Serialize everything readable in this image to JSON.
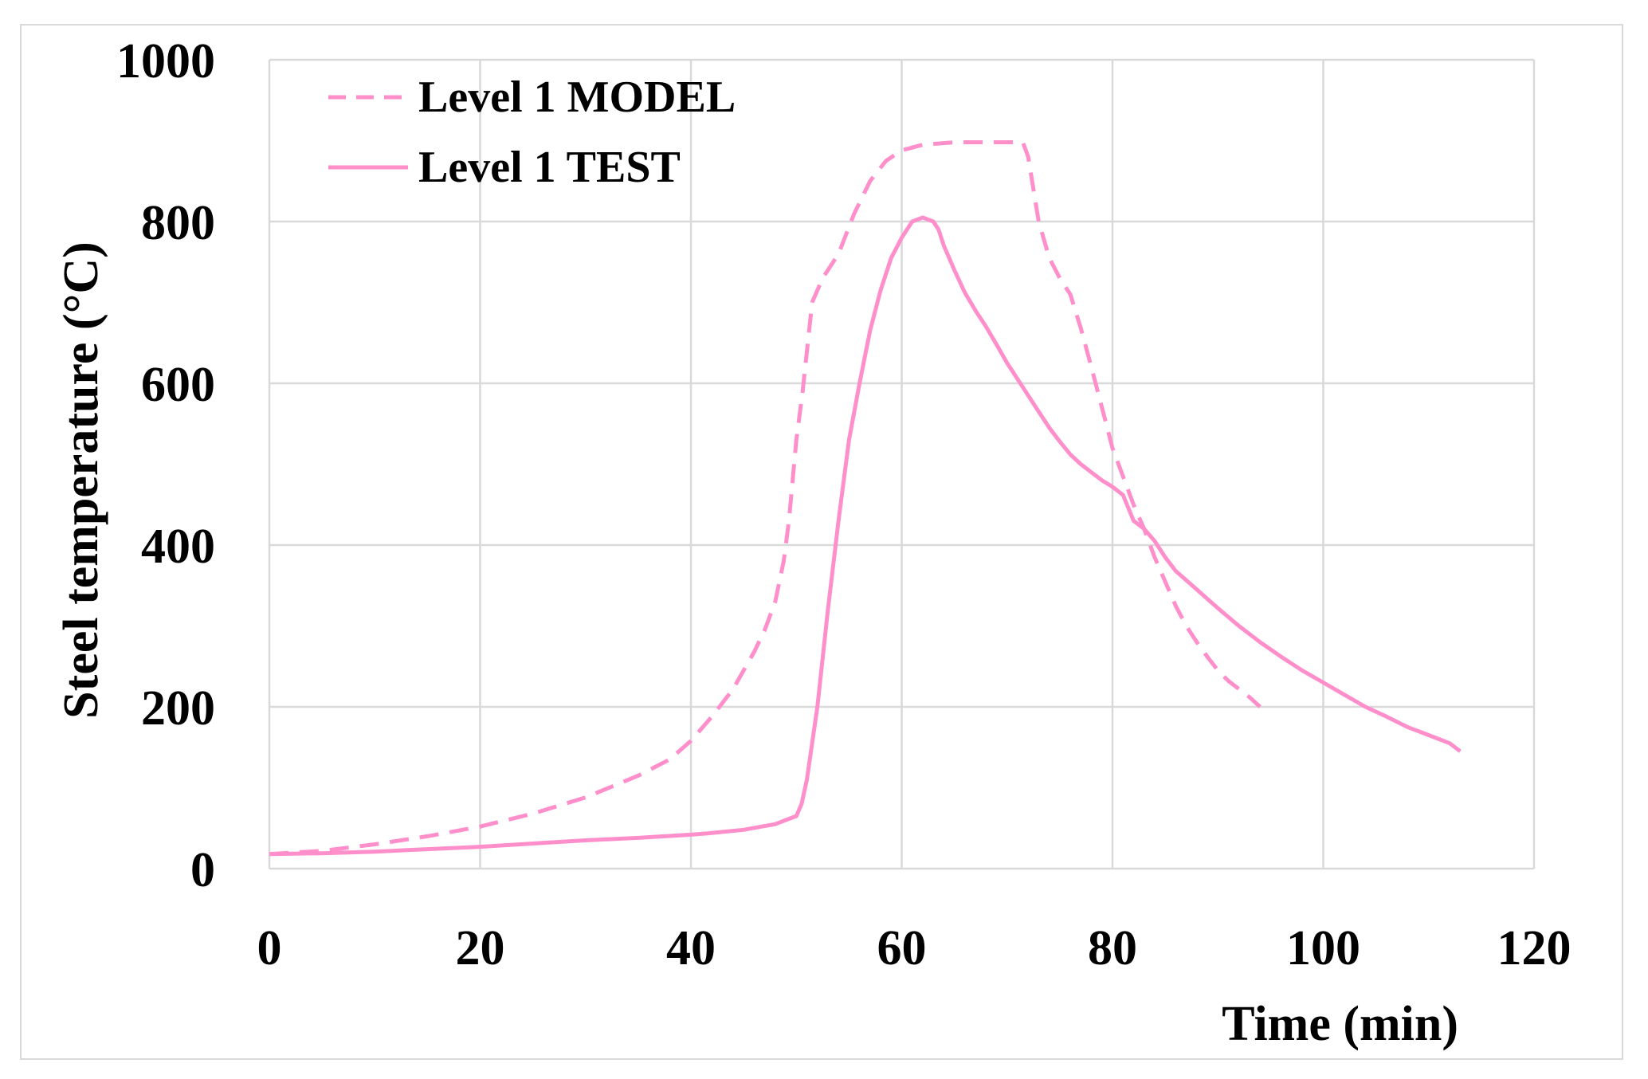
{
  "chart_data": {
    "type": "line",
    "title": "",
    "xlabel": "Time (min)",
    "ylabel": "Steel temperature (°C)",
    "xlim": [
      0,
      120
    ],
    "ylim": [
      0,
      1000
    ],
    "xticks": [
      0,
      20,
      40,
      60,
      80,
      100,
      120
    ],
    "yticks": [
      0,
      200,
      400,
      600,
      800,
      1000
    ],
    "grid": true,
    "legend_position": "top-left",
    "series": [
      {
        "name": "Level 1 MODEL",
        "style": "dashed",
        "color": "#ff8fcb",
        "x": [
          0,
          5,
          10,
          15,
          20,
          25,
          30,
          35,
          38,
          40,
          42,
          44,
          46,
          47,
          48,
          48.8,
          49.3,
          50,
          50.6,
          51.5,
          52.5,
          54,
          55.5,
          57,
          58.5,
          60,
          62,
          65,
          68,
          70,
          71.5,
          72,
          73,
          74,
          75,
          76,
          77,
          78,
          79,
          80,
          81,
          82,
          83,
          84,
          85,
          86,
          87,
          88,
          89,
          90,
          91,
          92,
          93,
          94
        ],
        "y": [
          18,
          22,
          30,
          40,
          52,
          68,
          88,
          115,
          135,
          158,
          188,
          222,
          268,
          295,
          330,
          380,
          430,
          530,
          590,
          700,
          730,
          760,
          810,
          850,
          875,
          888,
          895,
          898,
          898,
          898,
          898,
          880,
          800,
          755,
          730,
          710,
          668,
          620,
          570,
          520,
          485,
          450,
          420,
          385,
          355,
          325,
          300,
          280,
          262,
          245,
          232,
          222,
          212,
          200
        ]
      },
      {
        "name": "Level 1 TEST",
        "style": "solid",
        "color": "#ff8fcb",
        "x": [
          0,
          5,
          10,
          15,
          20,
          25,
          30,
          35,
          40,
          42,
          45,
          48,
          50,
          50.5,
          51,
          52,
          53,
          54,
          55,
          56,
          57,
          58,
          59,
          60,
          61,
          62,
          63,
          63.5,
          64,
          65,
          66,
          67,
          68,
          69,
          70,
          71,
          72,
          73,
          74,
          75,
          76,
          77,
          78,
          79,
          80,
          81,
          82,
          83,
          84,
          85,
          86,
          88,
          90,
          92,
          94,
          96,
          98,
          100,
          102,
          104,
          106,
          108,
          110,
          112,
          113
        ],
        "y": [
          18,
          19,
          21,
          24,
          27,
          31,
          35,
          38,
          42,
          44,
          48,
          55,
          65,
          80,
          110,
          200,
          320,
          430,
          530,
          600,
          665,
          715,
          755,
          780,
          800,
          805,
          800,
          790,
          770,
          740,
          712,
          690,
          670,
          648,
          625,
          605,
          585,
          565,
          545,
          528,
          512,
          500,
          490,
          480,
          472,
          462,
          430,
          420,
          405,
          385,
          368,
          345,
          322,
          300,
          280,
          262,
          245,
          230,
          215,
          200,
          188,
          175,
          165,
          155,
          145
        ]
      }
    ]
  }
}
